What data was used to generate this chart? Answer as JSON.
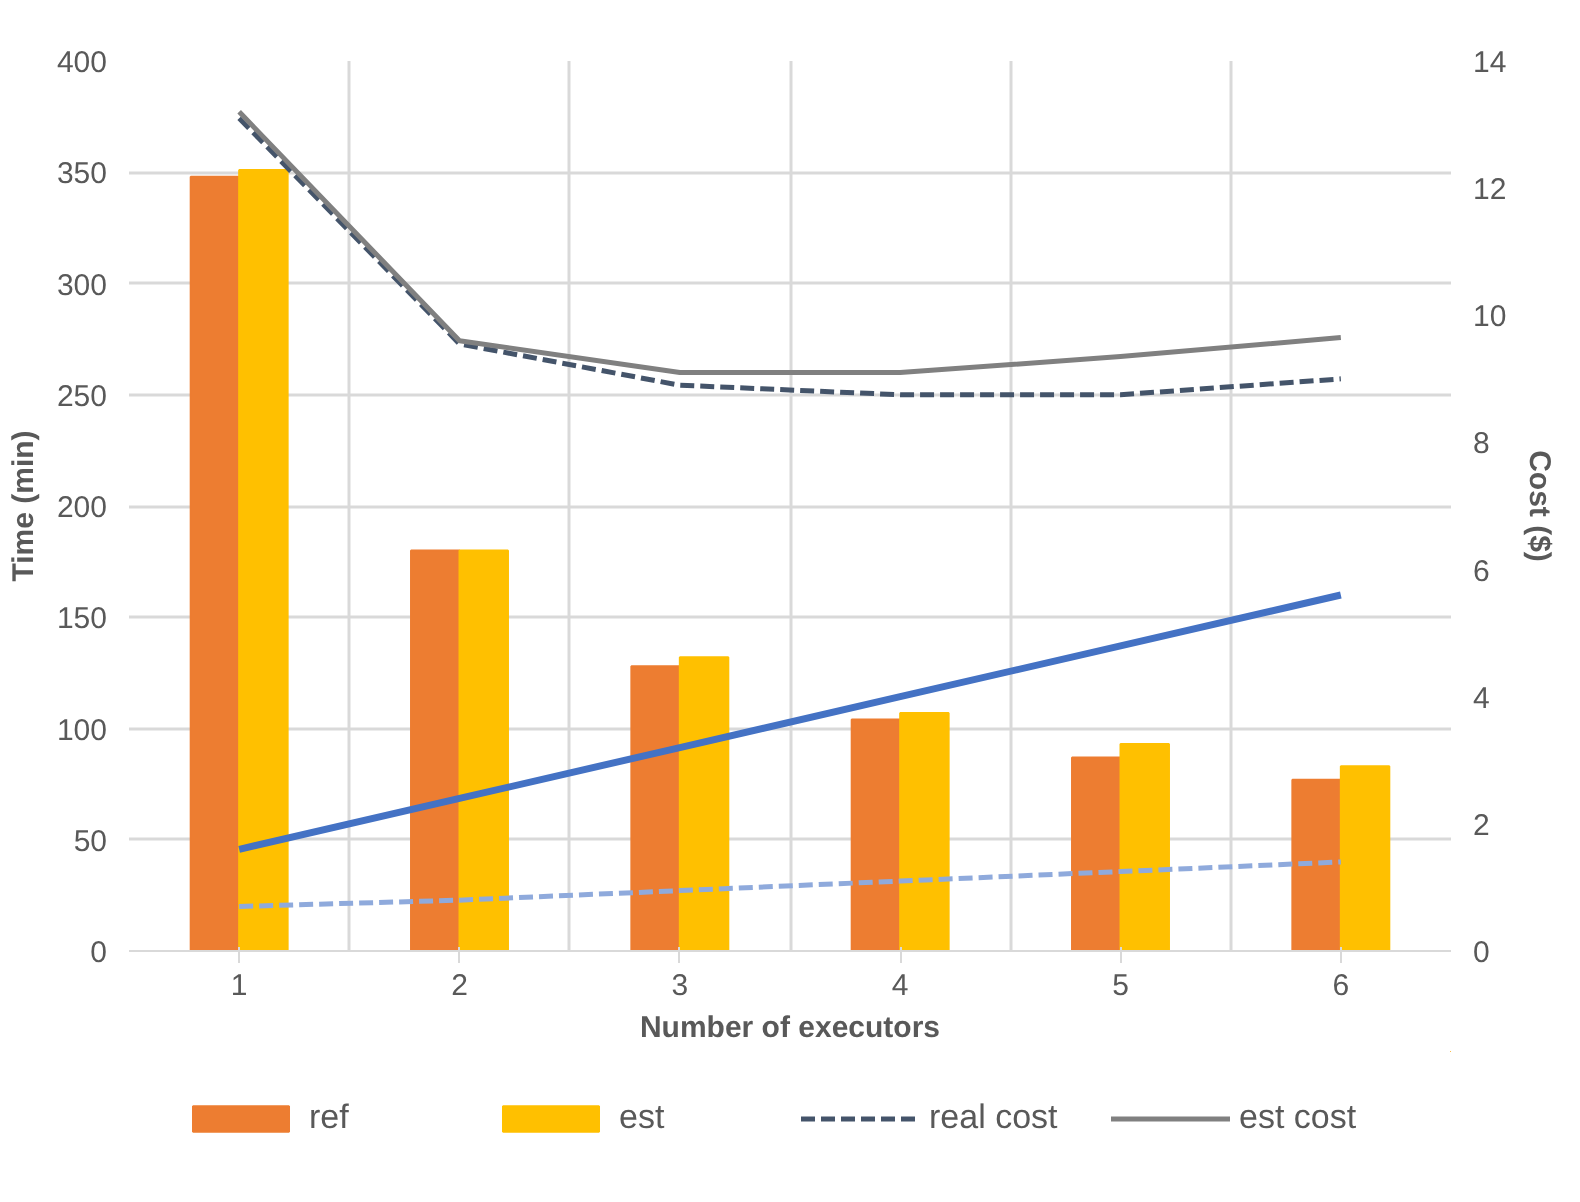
{
  "chart_data": {
    "type": "bar",
    "xlabel": "Number of executors",
    "ylabel": "Time (min)",
    "y2label": "Cost ($)",
    "categories": [
      "1",
      "2",
      "3",
      "4",
      "5",
      "6"
    ],
    "series": [
      {
        "name": "ref",
        "color": "#ed7d31",
        "values": [
          348,
          180,
          128,
          104,
          87,
          77
        ]
      },
      {
        "name": "est",
        "color": "#ffc000",
        "values": [
          351,
          180,
          132,
          107,
          93,
          83
        ]
      },
      {
        "type": "line",
        "axis": "y2",
        "line_style": "dashed",
        "color": "#8faadc",
        "values": [
          0.7,
          0.8,
          0.95,
          1.1,
          1.25,
          1.4
        ]
      },
      {
        "type": "line",
        "axis": "y2",
        "line_style": "solid",
        "color": "#4472c4",
        "values": [
          1.6,
          2.4,
          3.2,
          4.0,
          4.8,
          5.6
        ]
      },
      {
        "name": "real cost",
        "type": "line",
        "axis": "y2",
        "line_style": "dashed",
        "color": "#44546a",
        "values": [
          13.1,
          9.55,
          8.9,
          8.75,
          8.75,
          9.0
        ]
      },
      {
        "name": "est cost",
        "type": "line",
        "axis": "y2",
        "line_style": "solid",
        "color": "#808080",
        "values": [
          13.2,
          9.6,
          9.1,
          9.1,
          9.35,
          9.65
        ]
      }
    ],
    "ylim": [
      0,
      400
    ],
    "yticks": [
      0,
      50,
      100,
      150,
      200,
      250,
      300,
      350,
      400
    ],
    "y2lim": [
      0,
      14
    ],
    "y2ticks": [
      0,
      2,
      4,
      6,
      8,
      10,
      12,
      14
    ],
    "grid": true,
    "legend": "bottom"
  }
}
